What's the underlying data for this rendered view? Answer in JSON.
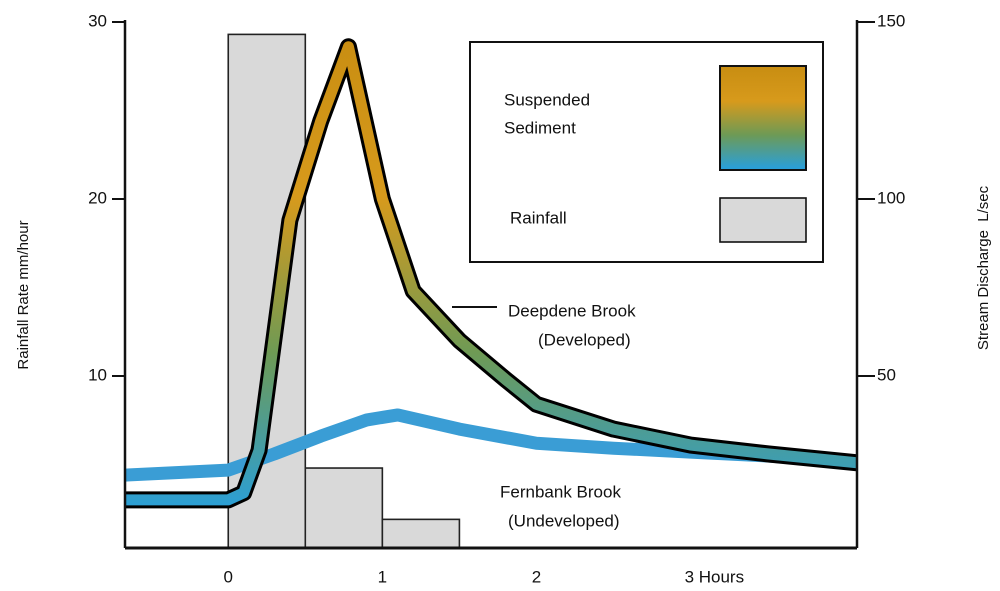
{
  "chart_data": {
    "type": "line",
    "xlim": [
      -0.67,
      4.08
    ],
    "xticks": [
      0,
      1,
      2,
      {
        "value": 3,
        "label": "3 Hours"
      }
    ],
    "ylim": [
      0,
      30
    ],
    "yticks": [
      10,
      20,
      30
    ],
    "y_label": "Rainfall Rate mm/hour",
    "y2lim": [
      0,
      150
    ],
    "y2ticks": [
      50,
      100,
      150
    ],
    "y2_label": "Stream Discharge  L/sec",
    "color_legend": {
      "label": [
        "Suspended",
        "Sediment"
      ],
      "colors": [
        "#c98e12",
        "#d79a1c",
        "#6e9a55",
        "#2a9fd8"
      ]
    },
    "series": [
      {
        "name": "Rainfall",
        "type": "histogram",
        "axis": "y",
        "color": "#d9d9d9",
        "bins": [
          0,
          0.5,
          1,
          1.5
        ],
        "values": [
          29.3,
          4.8,
          1.9
        ]
      },
      {
        "name": [
          "Deepdene Brook",
          "(Developed)"
        ],
        "type": "line",
        "axis": "y2",
        "color": "#000000",
        "x": [
          -0.67,
          0,
          0.1,
          0.2,
          0.4,
          0.6,
          0.78,
          1.0,
          1.2,
          1.5,
          1.8,
          2.0,
          2.5,
          3.0,
          3.5,
          4.08
        ],
        "values": [
          15,
          15,
          17,
          29,
          94,
          122,
          143,
          100,
          74,
          60,
          49,
          42,
          35,
          30.5,
          28,
          25.5
        ]
      },
      {
        "name": [
          "Fernbank Brook",
          "(Undeveloped)"
        ],
        "type": "line",
        "axis": "y2",
        "color": "#3a9dd5",
        "x": [
          -0.67,
          0,
          0.3,
          0.6,
          0.9,
          1.1,
          1.5,
          2.0,
          2.5,
          3.0,
          3.5,
          4.08
        ],
        "values": [
          22,
          23.4,
          28,
          33,
          37.6,
          39,
          35,
          31,
          29.6,
          28.5,
          27.4,
          25.7
        ]
      }
    ]
  }
}
